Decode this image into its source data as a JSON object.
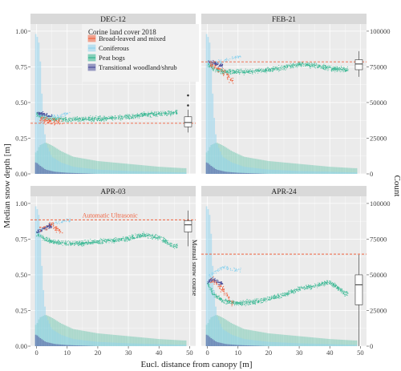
{
  "chart_data": {
    "type": "scatter",
    "xlabel": "Eucl. distance from canopy [m]",
    "ylabel": "Median snow depth [m]",
    "y2label": "Count",
    "xlim": [
      -2,
      52
    ],
    "ylim": [
      0,
      1.05
    ],
    "y2lim": [
      0,
      105000
    ],
    "x_ticks": [
      "0",
      "10",
      "20",
      "30",
      "40",
      "50"
    ],
    "x_tick_values": [
      0,
      10,
      20,
      30,
      40,
      50
    ],
    "y_ticks": [
      "0.00",
      "0.25",
      "0.50",
      "0.75",
      "1.00"
    ],
    "y_tick_values": [
      0,
      0.25,
      0.5,
      0.75,
      1.0
    ],
    "y2_ticks": [
      "0",
      "25000",
      "50000",
      "75000",
      "100000"
    ],
    "y2_tick_values": [
      0,
      25000,
      50000,
      75000,
      100000
    ],
    "grid": true,
    "legend": {
      "title": "Corine land cover 2018",
      "placement": "inside-top-left-panel",
      "entries": [
        {
          "name": "Broad-leaved and mixed",
          "color": "#f0623f"
        },
        {
          "name": "Coniferous",
          "color": "#8fd3ee"
        },
        {
          "name": "Peat bogs",
          "color": "#2fb58e"
        },
        {
          "name": "Transitional woodland/shrub",
          "color": "#4a4e9a"
        }
      ]
    },
    "annotations": {
      "automatic_label": "Automatic Ultrasonic",
      "manual_label": "Manual snow course"
    },
    "panels": [
      {
        "title": "DEC-12",
        "automatic": 0.355,
        "peat": [
          [
            0,
            0.42
          ],
          [
            2,
            0.4
          ],
          [
            5,
            0.385
          ],
          [
            10,
            0.38
          ],
          [
            15,
            0.385
          ],
          [
            20,
            0.385
          ],
          [
            25,
            0.39
          ],
          [
            30,
            0.4
          ],
          [
            35,
            0.415
          ],
          [
            40,
            0.42
          ],
          [
            45,
            0.43
          ]
        ],
        "broad": [
          [
            2,
            0.38
          ],
          [
            5,
            0.37
          ],
          [
            8,
            0.36
          ]
        ],
        "conif": [
          [
            1,
            0.41
          ],
          [
            5,
            0.4
          ],
          [
            10,
            0.42
          ]
        ],
        "trans": [
          [
            0,
            0.43
          ],
          [
            2,
            0.42
          ],
          [
            4,
            0.41
          ]
        ],
        "box": {
          "min": 0.29,
          "q1": 0.33,
          "median": 0.36,
          "q3": 0.4,
          "max": 0.45,
          "outliers": [
            0.48,
            0.55
          ]
        }
      },
      {
        "title": "FEB-21",
        "automatic": 0.785,
        "peat": [
          [
            0,
            0.77
          ],
          [
            2,
            0.74
          ],
          [
            5,
            0.715
          ],
          [
            10,
            0.715
          ],
          [
            15,
            0.715
          ],
          [
            20,
            0.73
          ],
          [
            25,
            0.745
          ],
          [
            30,
            0.77
          ],
          [
            35,
            0.76
          ],
          [
            40,
            0.74
          ],
          [
            45,
            0.73
          ]
        ],
        "broad": [
          [
            2,
            0.76
          ],
          [
            5,
            0.72
          ],
          [
            8,
            0.65
          ]
        ],
        "conif": [
          [
            1,
            0.77
          ],
          [
            5,
            0.79
          ],
          [
            10,
            0.82
          ]
        ],
        "trans": [
          [
            0,
            0.79
          ],
          [
            2,
            0.78
          ],
          [
            4,
            0.76
          ]
        ],
        "box": {
          "min": 0.68,
          "q1": 0.73,
          "median": 0.77,
          "q3": 0.8,
          "max": 0.86,
          "outliers": []
        }
      },
      {
        "title": "APR-03",
        "automatic": 0.885,
        "peat": [
          [
            0,
            0.79
          ],
          [
            2,
            0.76
          ],
          [
            5,
            0.73
          ],
          [
            10,
            0.72
          ],
          [
            15,
            0.72
          ],
          [
            20,
            0.735
          ],
          [
            25,
            0.74
          ],
          [
            30,
            0.755
          ],
          [
            35,
            0.78
          ],
          [
            40,
            0.76
          ],
          [
            45,
            0.7
          ]
        ],
        "broad": [
          [
            2,
            0.82
          ],
          [
            5,
            0.85
          ],
          [
            8,
            0.8
          ]
        ],
        "conif": [
          [
            1,
            0.8
          ],
          [
            5,
            0.86
          ],
          [
            10,
            0.88
          ]
        ],
        "trans": [
          [
            0,
            0.8
          ],
          [
            2,
            0.82
          ],
          [
            4,
            0.84
          ]
        ],
        "box": {
          "min": 0.7,
          "q1": 0.8,
          "median": 0.85,
          "q3": 0.88,
          "max": 0.95,
          "outliers": []
        }
      },
      {
        "title": "APR-24",
        "automatic": 0.645,
        "peat": [
          [
            0,
            0.44
          ],
          [
            2,
            0.36
          ],
          [
            5,
            0.32
          ],
          [
            10,
            0.3
          ],
          [
            15,
            0.31
          ],
          [
            20,
            0.33
          ],
          [
            25,
            0.36
          ],
          [
            30,
            0.4
          ],
          [
            35,
            0.42
          ],
          [
            40,
            0.45
          ],
          [
            45,
            0.37
          ]
        ],
        "broad": [
          [
            2,
            0.46
          ],
          [
            5,
            0.4
          ],
          [
            8,
            0.3
          ]
        ],
        "conif": [
          [
            1,
            0.5
          ],
          [
            5,
            0.55
          ],
          [
            10,
            0.53
          ]
        ],
        "trans": [
          [
            0,
            0.45
          ],
          [
            2,
            0.47
          ],
          [
            4,
            0.44
          ]
        ],
        "box": {
          "min": 0.0,
          "q1": 0.29,
          "median": 0.43,
          "q3": 0.5,
          "max": 0.64,
          "outliers": []
        }
      }
    ],
    "histogram_note_counts": {
      "coniferous": [
        [
          0,
          98000
        ],
        [
          1,
          90000
        ],
        [
          2,
          45000
        ],
        [
          3,
          22000
        ],
        [
          5,
          12000
        ],
        [
          8,
          8000
        ],
        [
          12,
          5000
        ],
        [
          20,
          3000
        ],
        [
          30,
          2000
        ],
        [
          40,
          1500
        ],
        [
          48,
          1000
        ]
      ],
      "peat": [
        [
          0,
          15000
        ],
        [
          1,
          20000
        ],
        [
          3,
          22000
        ],
        [
          5,
          20000
        ],
        [
          8,
          16000
        ],
        [
          12,
          12000
        ],
        [
          20,
          9000
        ],
        [
          30,
          7000
        ],
        [
          40,
          5000
        ],
        [
          48,
          4000
        ]
      ],
      "transitional": [
        [
          0,
          8000
        ],
        [
          1,
          6000
        ],
        [
          3,
          3000
        ],
        [
          6,
          1500
        ],
        [
          10,
          800
        ]
      ]
    },
    "colors": {
      "broad": "#f0623f",
      "conif": "#8fd3ee",
      "peat": "#2fb58e",
      "trans": "#4a4e9a",
      "automatic": "#f0623f",
      "panel_bg": "#ebebeb",
      "strip_bg": "#d9d9d9"
    }
  }
}
